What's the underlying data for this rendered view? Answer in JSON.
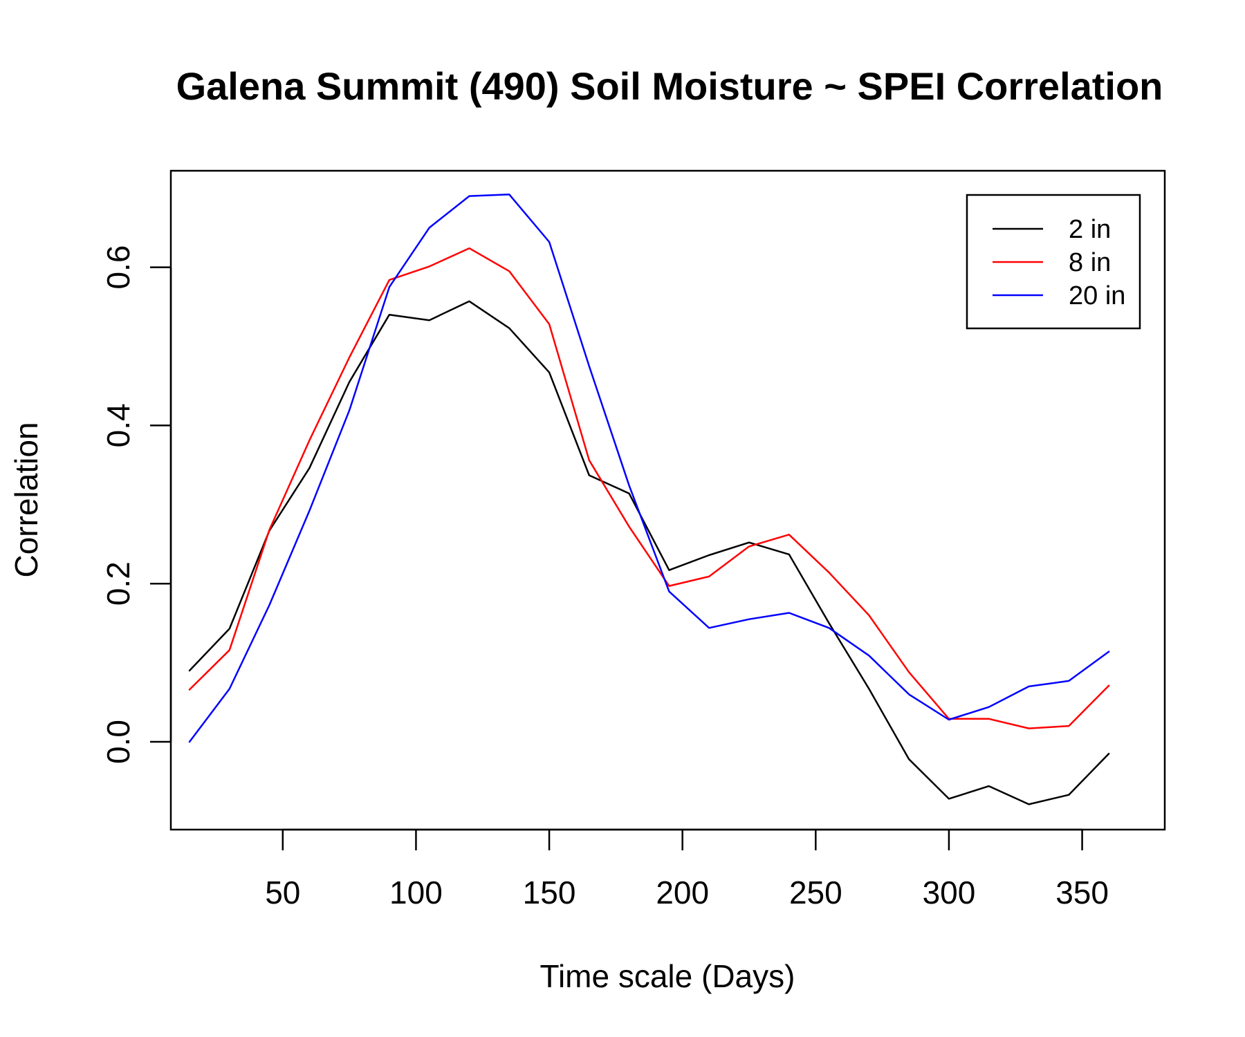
{
  "chart_data": {
    "type": "line",
    "title": "Galena Summit (490) Soil Moisture ~ SPEI Correlation",
    "xlabel": "Time scale (Days)",
    "ylabel": "Correlation",
    "xlim": [
      8,
      381
    ],
    "ylim": [
      -0.111,
      0.722
    ],
    "x_ticks": [
      50,
      100,
      150,
      200,
      250,
      300,
      350
    ],
    "x_tick_labels": [
      "50",
      "100",
      "150",
      "200",
      "250",
      "300",
      "350"
    ],
    "y_ticks": [
      0.0,
      0.2,
      0.4,
      0.6
    ],
    "y_tick_labels": [
      "0.0",
      "0.2",
      "0.4",
      "0.6"
    ],
    "grid": false,
    "legend_position": "top-right",
    "x": [
      15,
      30,
      45,
      60,
      75,
      90,
      105,
      120,
      135,
      150,
      165,
      180,
      195,
      210,
      225,
      240,
      255,
      270,
      285,
      300,
      315,
      330,
      345,
      360
    ],
    "series": [
      {
        "name": "2 in",
        "color": "#000000",
        "values": [
          0.09,
          0.143,
          0.267,
          0.346,
          0.455,
          0.54,
          0.533,
          0.557,
          0.523,
          0.467,
          0.337,
          0.314,
          0.217,
          0.236,
          0.252,
          0.237,
          0.15,
          0.067,
          -0.022,
          -0.072,
          -0.056,
          -0.079,
          -0.067,
          -0.015
        ]
      },
      {
        "name": "8 in",
        "color": "#ff0000",
        "values": [
          0.066,
          0.116,
          0.268,
          0.381,
          0.486,
          0.584,
          0.601,
          0.624,
          0.595,
          0.528,
          0.356,
          0.272,
          0.197,
          0.209,
          0.247,
          0.262,
          0.214,
          0.16,
          0.088,
          0.029,
          0.029,
          0.017,
          0.02,
          0.071
        ]
      },
      {
        "name": "20 in",
        "color": "#0000ff",
        "values": [
          0.0,
          0.067,
          0.173,
          0.292,
          0.419,
          0.575,
          0.65,
          0.69,
          0.692,
          0.632,
          0.475,
          0.324,
          0.19,
          0.144,
          0.155,
          0.163,
          0.144,
          0.109,
          0.06,
          0.028,
          0.044,
          0.07,
          0.077,
          0.114
        ]
      }
    ]
  }
}
